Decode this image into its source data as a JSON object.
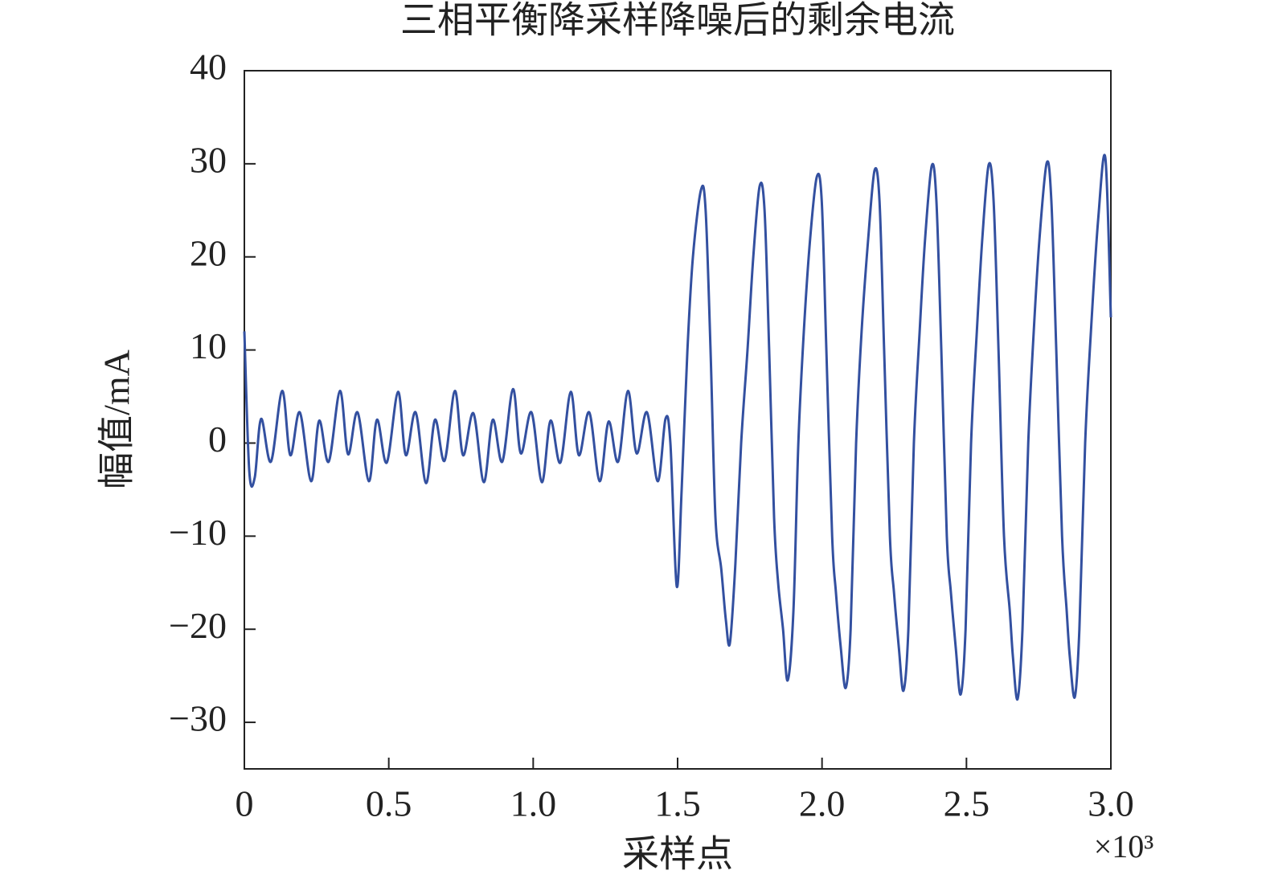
{
  "chart_data": {
    "type": "line",
    "title": "三相平衡降采样降噪后的剩余电流",
    "xlabel": "采样点",
    "ylabel": "幅值/mA",
    "x_multiplier": "×10³",
    "color": "#3350a0",
    "xlim": [
      0,
      3.0
    ],
    "ylim": [
      -35,
      40
    ],
    "xticks": [
      0,
      0.5,
      {
        "value": 1,
        "label": "1.0"
      },
      1.5,
      {
        "value": 2,
        "label": "2.0"
      },
      2.5,
      {
        "value": 3,
        "label": "3.0"
      }
    ],
    "yticks": [
      {
        "value": -30,
        "label": "−30"
      },
      {
        "value": -20,
        "label": "−20"
      },
      {
        "value": -10,
        "label": "−10"
      },
      0,
      10,
      20,
      30,
      40
    ],
    "x": [
      0,
      0.017,
      0.036,
      0.058,
      0.092,
      0.131,
      0.159,
      0.192,
      0.231,
      0.259,
      0.292,
      0.331,
      0.359,
      0.392,
      0.431,
      0.459,
      0.493,
      0.532,
      0.559,
      0.593,
      0.629,
      0.66,
      0.693,
      0.729,
      0.757,
      0.793,
      0.829,
      0.86,
      0.893,
      0.93,
      0.957,
      0.994,
      1.03,
      1.06,
      1.094,
      1.13,
      1.158,
      1.194,
      1.23,
      1.261,
      1.294,
      1.328,
      1.358,
      1.394,
      1.431,
      1.458,
      1.475,
      1.497,
      1.514,
      1.534,
      1.553,
      1.581,
      1.597,
      1.614,
      1.631,
      1.651,
      1.667,
      1.681,
      1.7,
      1.72,
      1.742,
      1.762,
      1.784,
      1.801,
      1.817,
      1.834,
      1.848,
      1.865,
      1.881,
      1.901,
      1.918,
      1.937,
      1.959,
      1.982,
      1.999,
      2.015,
      2.035,
      2.048,
      2.065,
      2.082,
      2.099,
      2.118,
      2.137,
      2.16,
      2.182,
      2.199,
      2.215,
      2.235,
      2.249,
      2.266,
      2.282,
      2.299,
      2.318,
      2.338,
      2.357,
      2.38,
      2.396,
      2.413,
      2.432,
      2.446,
      2.463,
      2.48,
      2.497,
      2.516,
      2.536,
      2.555,
      2.577,
      2.594,
      2.611,
      2.63,
      2.65,
      2.661,
      2.677,
      2.694,
      2.714,
      2.733,
      2.753,
      2.778,
      2.794,
      2.811,
      2.831,
      2.847,
      2.858,
      2.875,
      2.891,
      2.911,
      2.931,
      2.956,
      2.981,
      3.0
    ],
    "values": [
      12,
      -3,
      -3.7,
      2.6,
      -2.0,
      5.6,
      -1.3,
      3.3,
      -4.1,
      2.4,
      -2.0,
      5.6,
      -1.2,
      3.3,
      -4.1,
      2.5,
      -2.1,
      5.5,
      -1.3,
      3.3,
      -4.3,
      2.5,
      -1.9,
      5.6,
      -1.3,
      3.2,
      -4.2,
      2.5,
      -2.0,
      5.8,
      -1.1,
      3.3,
      -4.2,
      2.4,
      -2.1,
      5.5,
      -1.3,
      3.3,
      -4.1,
      2.3,
      -2.0,
      5.6,
      -1.1,
      3.3,
      -4.1,
      2.6,
      0,
      -15.4,
      -5,
      10,
      20,
      27.2,
      25,
      10,
      -8,
      -13.5,
      -19,
      -21.5,
      -13,
      0,
      10,
      20,
      27.6,
      25,
      10,
      -8,
      -15,
      -20,
      -25.5,
      -18,
      0,
      12,
      22,
      28.6,
      26,
      10,
      -10,
      -16,
      -22,
      -26.3,
      -20,
      0,
      12,
      22,
      29.3,
      26,
      10,
      -10,
      -16,
      -22,
      -26.6,
      -20,
      0,
      12,
      22,
      29.8,
      26,
      10,
      -10,
      -16,
      -22,
      -27,
      -20,
      0,
      12,
      22,
      29.9,
      26,
      10,
      -10,
      -18,
      -23,
      -27.5,
      -20,
      0,
      12,
      22,
      30.1,
      26,
      10,
      -10,
      -18,
      -23,
      -27.3,
      -20,
      0,
      12,
      24,
      30.6,
      13.5
    ]
  }
}
